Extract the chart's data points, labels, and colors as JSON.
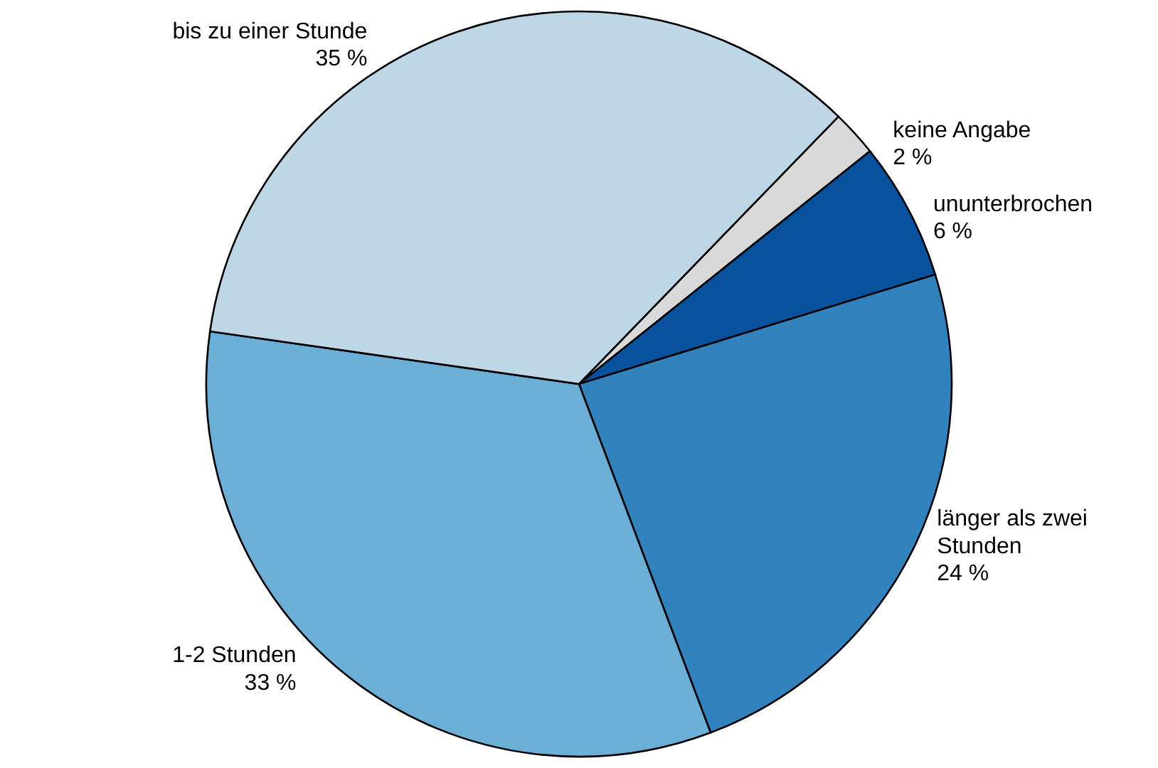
{
  "chart_data": {
    "type": "pie",
    "categories": [
      "keine Angabe",
      "ununterbrochen",
      "länger als zwei Stunden",
      "1-2 Stunden",
      "bis zu einer Stunde"
    ],
    "values": [
      2,
      6,
      24,
      33,
      35
    ],
    "colors": [
      "#d9d9d9",
      "#08519c",
      "#3182bd",
      "#6baed6",
      "#bdd7e7"
    ],
    "value_labels": [
      "2 %",
      "6 %",
      "24 %",
      "33 %",
      "35 %"
    ]
  }
}
